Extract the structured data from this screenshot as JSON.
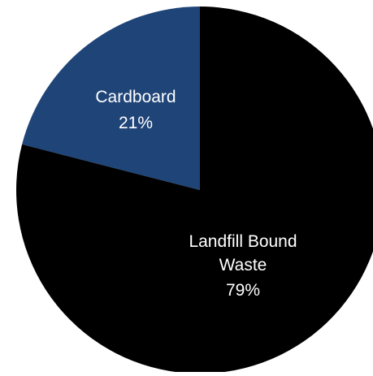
{
  "chart_data": {
    "type": "pie",
    "title": "",
    "slices": [
      {
        "label": "Cardboard",
        "value": 21,
        "value_label": "21%",
        "color": "#1f4478"
      },
      {
        "label": "Landfill Bound Waste",
        "label_lines": [
          "Landfill Bound",
          "Waste"
        ],
        "value": 79,
        "value_label": "79%",
        "color": "#000000"
      }
    ],
    "start_angle_deg": 0,
    "direction": "counterclockwise",
    "legend": "none"
  }
}
